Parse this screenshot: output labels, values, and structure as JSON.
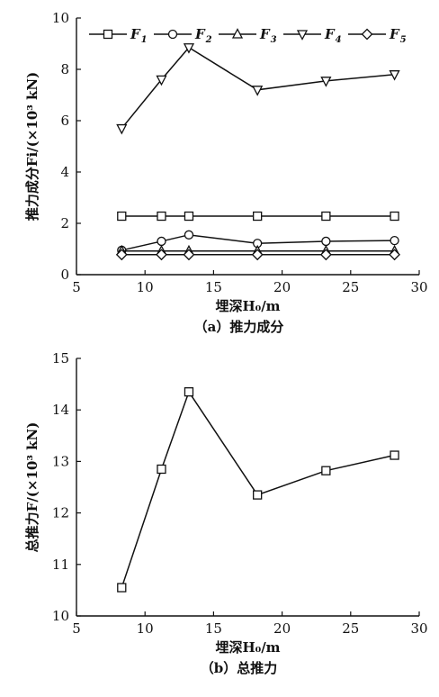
{
  "chart_data": [
    {
      "type": "line",
      "caption": "（a）推力成分",
      "ylabel": "推力成分Fi/(×10³ kN)",
      "xlabel": "埋深H₀/m",
      "xlim": [
        5,
        30
      ],
      "ylim": [
        0,
        10
      ],
      "xticks": [
        5,
        10,
        15,
        20,
        25,
        30
      ],
      "yticks": [
        0,
        2,
        4,
        6,
        8,
        10
      ],
      "legend_placement": "top",
      "series": [
        {
          "name": "F",
          "sub": "1",
          "marker": "square",
          "x": [
            8.3,
            11.2,
            13.2,
            18.2,
            23.2,
            28.2
          ],
          "y": [
            2.28,
            2.28,
            2.28,
            2.28,
            2.28,
            2.28
          ]
        },
        {
          "name": "F",
          "sub": "2",
          "marker": "circle",
          "x": [
            8.3,
            11.2,
            13.2,
            18.2,
            23.2,
            28.2
          ],
          "y": [
            0.95,
            1.3,
            1.55,
            1.22,
            1.3,
            1.33
          ]
        },
        {
          "name": "F",
          "sub": "3",
          "marker": "triangle-up",
          "x": [
            8.3,
            11.2,
            13.2,
            18.2,
            23.2,
            28.2
          ],
          "y": [
            0.92,
            0.92,
            0.92,
            0.92,
            0.92,
            0.92
          ]
        },
        {
          "name": "F",
          "sub": "4",
          "marker": "triangle-down",
          "x": [
            8.3,
            11.2,
            13.2,
            18.2,
            23.2,
            28.2
          ],
          "y": [
            5.7,
            7.6,
            8.85,
            7.2,
            7.55,
            7.8
          ]
        },
        {
          "name": "F",
          "sub": "5",
          "marker": "diamond",
          "x": [
            8.3,
            11.2,
            13.2,
            18.2,
            23.2,
            28.2
          ],
          "y": [
            0.78,
            0.78,
            0.78,
            0.78,
            0.78,
            0.78
          ]
        }
      ]
    },
    {
      "type": "line",
      "caption": "（b）总推力",
      "ylabel": "总推力F/(×10³ kN)",
      "xlabel": "埋深H₀/m",
      "xlim": [
        5,
        30
      ],
      "ylim": [
        10,
        15
      ],
      "xticks": [
        5,
        10,
        15,
        20,
        25,
        30
      ],
      "yticks": [
        10,
        11,
        12,
        13,
        14,
        15
      ],
      "series": [
        {
          "marker": "square",
          "x": [
            8.3,
            11.2,
            13.2,
            18.2,
            23.2,
            28.2
          ],
          "y": [
            10.55,
            12.85,
            14.35,
            12.35,
            12.82,
            13.12
          ]
        }
      ]
    }
  ]
}
